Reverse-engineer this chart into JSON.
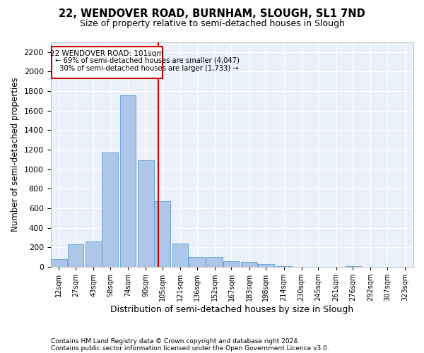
{
  "title": "22, WENDOVER ROAD, BURNHAM, SLOUGH, SL1 7ND",
  "subtitle": "Size of property relative to semi-detached houses in Slough",
  "xlabel": "Distribution of semi-detached houses by size in Slough",
  "ylabel": "Number of semi-detached properties",
  "footnote1": "Contains HM Land Registry data © Crown copyright and database right 2024.",
  "footnote2": "Contains public sector information licensed under the Open Government Licence v3.0.",
  "bar_color": "#aec6e8",
  "bar_edge_color": "#5a9fd4",
  "background_color": "#eaf1fb",
  "grid_color": "#ffffff",
  "annotation_box_color": "#cc0000",
  "vline_color": "#cc0000",
  "property_sqm": 101,
  "property_label": "22 WENDOVER ROAD: 101sqm",
  "smaller_pct": "69%",
  "smaller_n": "4,047",
  "larger_pct": "30%",
  "larger_n": "1,733",
  "bin_labels": [
    "12sqm",
    "27sqm",
    "43sqm",
    "58sqm",
    "74sqm",
    "90sqm",
    "105sqm",
    "121sqm",
    "136sqm",
    "152sqm",
    "167sqm",
    "183sqm",
    "198sqm",
    "214sqm",
    "230sqm",
    "245sqm",
    "261sqm",
    "276sqm",
    "292sqm",
    "307sqm",
    "323sqm"
  ],
  "bin_centers": [
    12,
    27,
    43,
    58,
    74,
    90,
    105,
    121,
    136,
    152,
    167,
    183,
    198,
    214,
    230,
    245,
    261,
    276,
    292,
    307,
    323
  ],
  "bar_heights": [
    80,
    230,
    260,
    1170,
    1760,
    1090,
    670,
    240,
    100,
    100,
    60,
    50,
    30,
    10,
    0,
    0,
    0,
    10,
    0,
    0,
    0
  ],
  "ylim": [
    0,
    2300
  ],
  "yticks": [
    0,
    200,
    400,
    600,
    800,
    1000,
    1200,
    1400,
    1600,
    1800,
    2000,
    2200
  ]
}
